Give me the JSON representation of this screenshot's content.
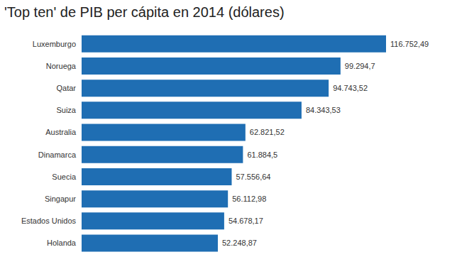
{
  "chart_data": {
    "type": "bar",
    "title": "'Top ten' de PIB per cápita en 2014 (dólares)",
    "orientation": "horizontal",
    "categories": [
      "Luxemburgo",
      "Noruega",
      "Qatar",
      "Suiza",
      "Australia",
      "Dinamarca",
      "Suecia",
      "Singapur",
      "Estados Unidos",
      "Holanda"
    ],
    "values": [
      116752.49,
      99294.7,
      94743.52,
      84343.53,
      62821.52,
      61884.5,
      57556.64,
      56112.98,
      54678.17,
      52248.87
    ],
    "value_labels": [
      "116.752,49",
      "99.294,7",
      "94.743,52",
      "84.343,53",
      "62.821,52",
      "61.884,5",
      "57.556,64",
      "56.112,98",
      "54.678,17",
      "52.248,87"
    ],
    "color": "#1f6eb3",
    "data_labels": true,
    "tick_labels": "y",
    "grid": false
  }
}
